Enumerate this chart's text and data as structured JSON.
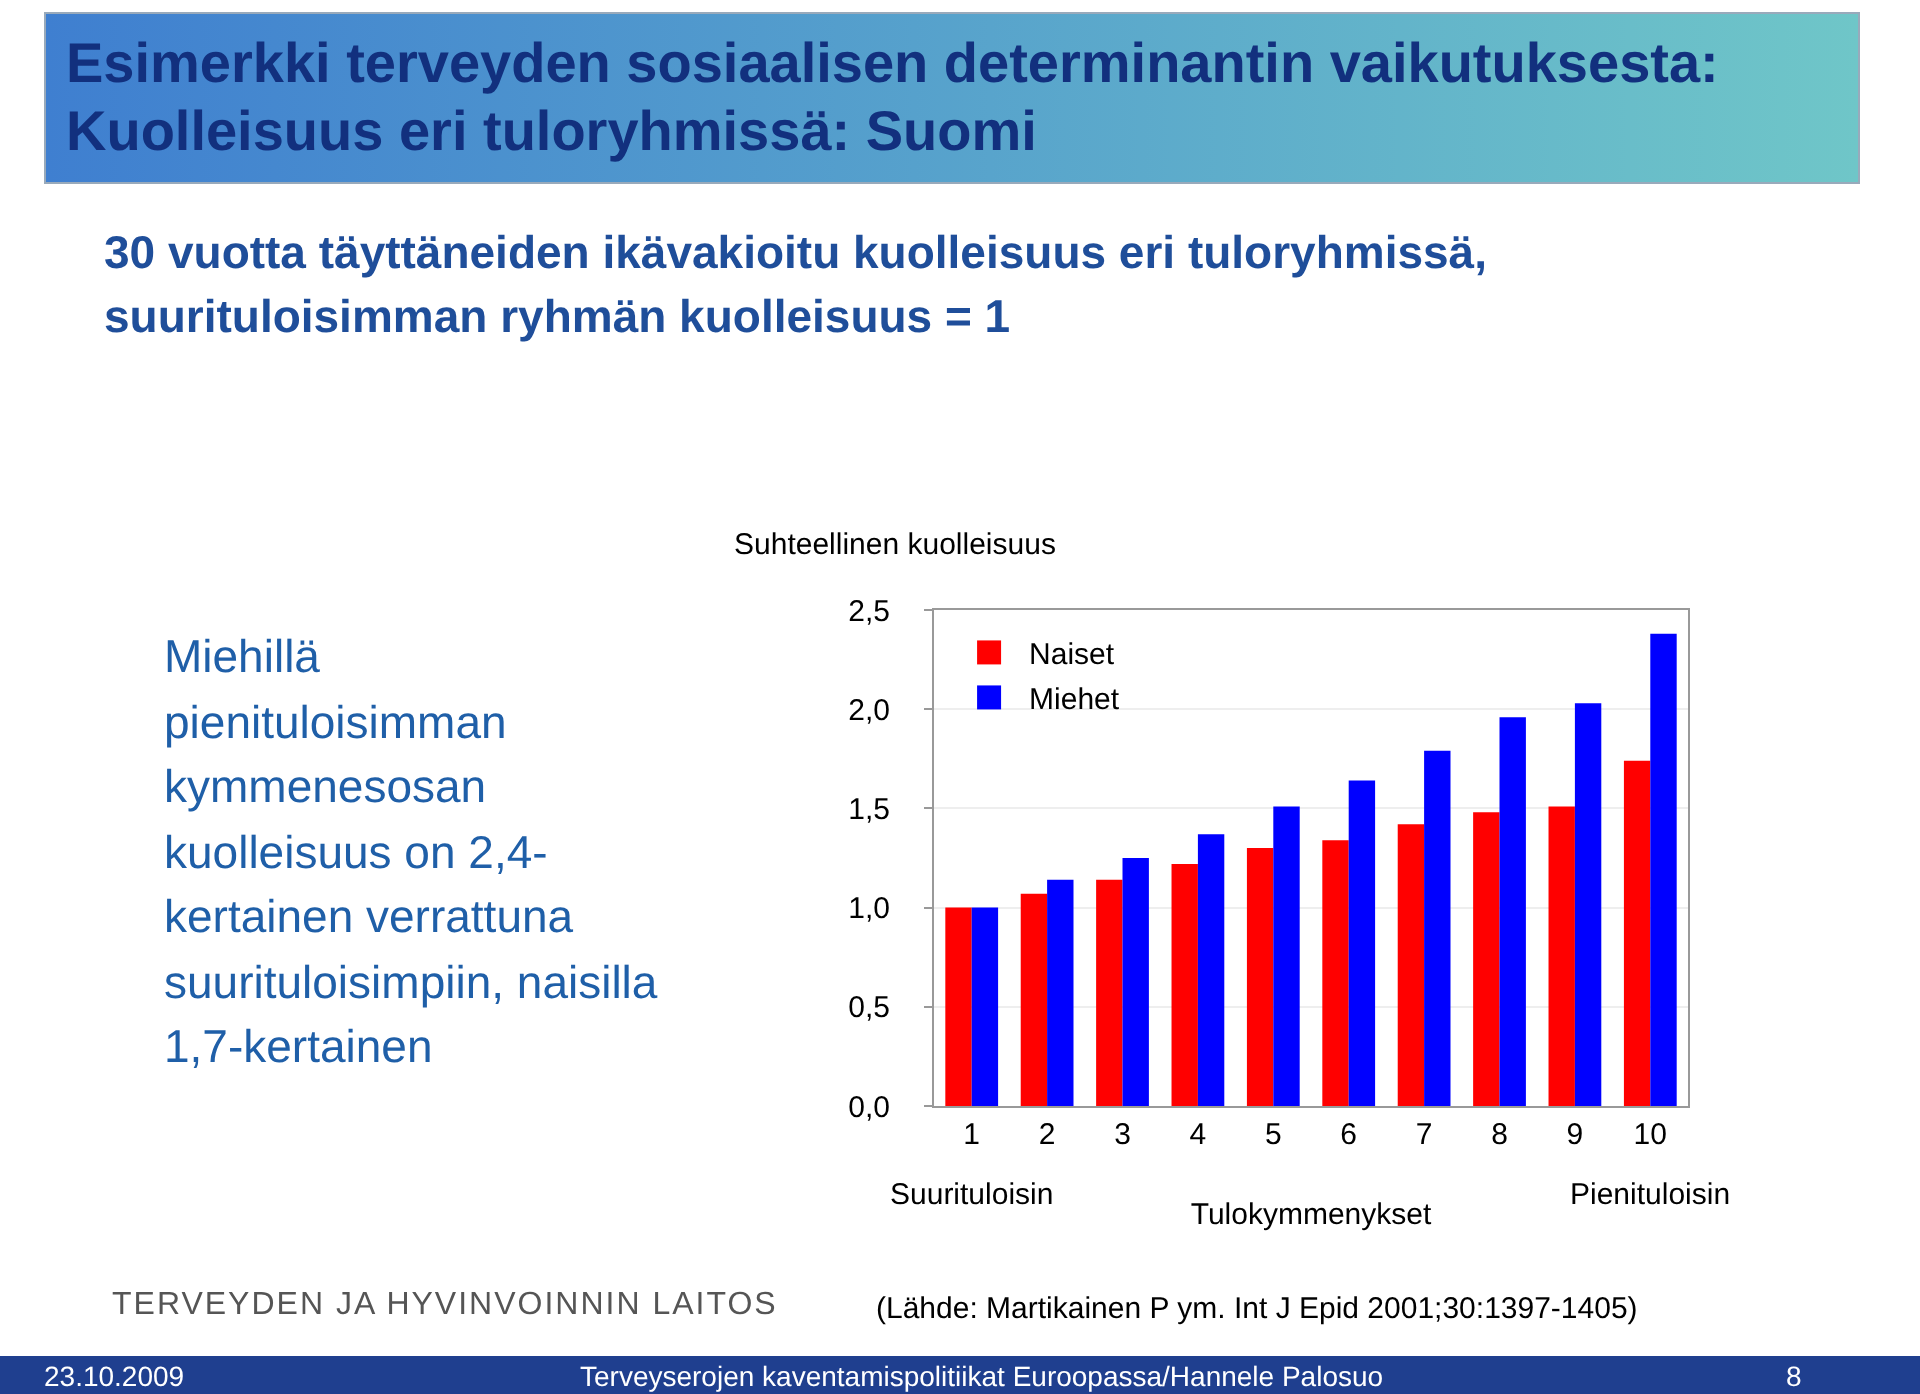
{
  "chart_data": {
    "type": "bar",
    "title": "Esimerkki terveyden sosiaalisen determinantin vaikutuksesta: Kuolleisuus eri tuloryhmissä: Suomi",
    "subtitle": "30 vuotta täyttäneiden ikävakioitu kuolleisuus eri tuloryhmissä, suurituloisimman ryhmän kuolleisuus = 1",
    "ylabel": "Suhteellinen kuolleisuus",
    "xlabel": "Tulokymmenykset",
    "categories": [
      "1",
      "2",
      "3",
      "4",
      "5",
      "6",
      "7",
      "8",
      "9",
      "10"
    ],
    "series": [
      {
        "name": "Naiset",
        "color": "#ff0000",
        "values": [
          1.0,
          1.07,
          1.14,
          1.22,
          1.3,
          1.34,
          1.42,
          1.48,
          1.51,
          1.74
        ]
      },
      {
        "name": "Miehet",
        "color": "#0000ff",
        "values": [
          1.0,
          1.14,
          1.25,
          1.37,
          1.51,
          1.64,
          1.79,
          1.96,
          2.03,
          2.38
        ]
      }
    ],
    "ylim": [
      0,
      2.5
    ],
    "yticks": [
      {
        "value": 0,
        "label": "0,0"
      },
      {
        "value": 0.5,
        "label": "0,5"
      },
      {
        "value": 1,
        "label": "1,0"
      },
      {
        "value": 1.5,
        "label": "1,5"
      },
      {
        "value": 2,
        "label": "2,0"
      },
      {
        "value": 2.5,
        "label": "2,5"
      }
    ],
    "grid": "y",
    "legend": "top left",
    "annotations": [
      "Suurituloisin",
      "Pienituloisin",
      "Miehillä pienituloisimman kymmenesosan kuolleisuus on 2,4-kertainen verrattuna suurituloisimpiin, naisilla 1,7-kertainen",
      "(Lähde: Martikainen P ym. Int J Epid 2001;30:1397-1405)",
      "TERVEYDEN JA HYVINVOINNIN LAITOS",
      "23.10.2009",
      "Terveyserojen kaventamispolitiikat Euroopassa/Hannele Palosuo",
      "8"
    ]
  }
}
